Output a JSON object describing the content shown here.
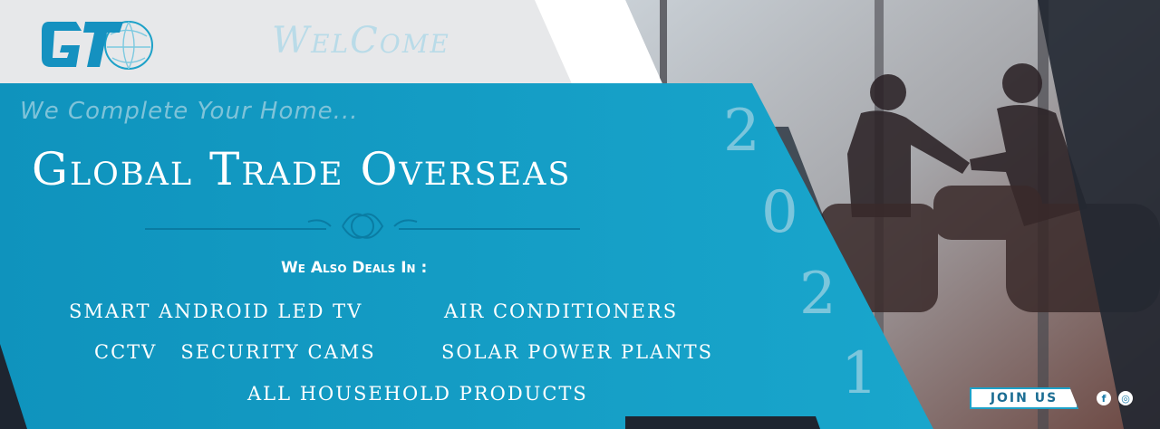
{
  "banner": {
    "welcome": "WelCome",
    "tagline": "We Complete Your Home...",
    "title": "Global Trade Overseas",
    "deals_heading": "We Also Deals In :",
    "products": [
      "SMART ANDROID LED TV",
      "AIR CONDITIONERS",
      "CCTV   SECURITY CAMS",
      "SOLAR POWER PLANTS",
      "ALL HOUSEHOLD PRODUCTS"
    ],
    "year_digits": [
      "2",
      "0",
      "2",
      "1"
    ],
    "logo_text": "GT",
    "join_label": "JOIN US",
    "social": [
      "f",
      "◎"
    ]
  },
  "colors": {
    "accent": "#16a0c6",
    "dark": "#1e2530",
    "light_gray": "#e7e8ea",
    "welcome": "#b9dbe8"
  }
}
